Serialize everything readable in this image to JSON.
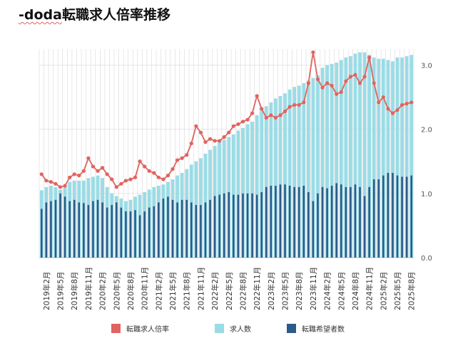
{
  "title": {
    "prefix": "-doda",
    "rest": "転職求人倍率推移"
  },
  "colors": {
    "ratio": "#e0645f",
    "openings": "#9adce6",
    "seekers": "#2b5b8a",
    "grid": "#d8d8d8"
  },
  "chart_data": {
    "type": "bar+line",
    "title": "-doda転職求人倍率推移",
    "x": [
      "2019年1月",
      "2019年2月",
      "2019年3月",
      "2019年4月",
      "2019年5月",
      "2019年6月",
      "2019年7月",
      "2019年8月",
      "2019年9月",
      "2019年10月",
      "2019年11月",
      "2019年12月",
      "2020年1月",
      "2020年2月",
      "2020年3月",
      "2020年4月",
      "2020年5月",
      "2020年6月",
      "2020年7月",
      "2020年8月",
      "2020年9月",
      "2020年10月",
      "2020年11月",
      "2020年12月",
      "2021年1月",
      "2021年2月",
      "2021年3月",
      "2021年4月",
      "2021年5月",
      "2021年6月",
      "2021年7月",
      "2021年8月",
      "2021年9月",
      "2021年10月",
      "2021年11月",
      "2021年12月",
      "2022年1月",
      "2022年2月",
      "2022年3月",
      "2022年4月",
      "2022年5月",
      "2022年6月",
      "2022年7月",
      "2022年8月",
      "2022年9月",
      "2022年10月",
      "2022年11月",
      "2022年12月",
      "2023年1月",
      "2023年2月",
      "2023年3月",
      "2023年4月",
      "2023年5月",
      "2023年6月",
      "2023年7月",
      "2023年8月",
      "2023年9月",
      "2023年10月",
      "2023年11月",
      "2023年12月",
      "2024年1月",
      "2024年2月",
      "2024年3月",
      "2024年4月",
      "2024年5月",
      "2024年6月",
      "2024年7月",
      "2024年8月",
      "2024年9月",
      "2024年10月",
      "2024年11月",
      "2024年12月",
      "2025年1月",
      "2025年2月",
      "2025年3月",
      "2025年4月",
      "2025年5月",
      "2025年6月",
      "2025年7月",
      "2025年8月"
    ],
    "tick_labels": [
      "2019年2月",
      "2019年5月",
      "2019年8月",
      "2019年11月",
      "2020年2月",
      "2020年5月",
      "2020年8月",
      "2020年11月",
      "2021年2月",
      "2021年5月",
      "2021年8月",
      "2021年11月",
      "2022年2月",
      "2022年5月",
      "2022年8月",
      "2022年11月",
      "2023年2月",
      "2023年5月",
      "2023年8月",
      "2023年11月",
      "2024年2月",
      "2024年5月",
      "2024年8月",
      "2024年11月",
      "2025年2月",
      "2025年5月",
      "2025年8月"
    ],
    "tick_start_index": 1,
    "tick_step": 3,
    "y_ticks": [
      "0.0",
      "1.0",
      "2.0",
      "3.0"
    ],
    "ylim": [
      0,
      3.25
    ],
    "series": [
      {
        "name": "求人数",
        "kind": "bar",
        "values": [
          1.05,
          1.1,
          1.12,
          1.1,
          1.06,
          1.1,
          1.18,
          1.2,
          1.2,
          1.2,
          1.24,
          1.26,
          1.28,
          1.24,
          1.1,
          1.0,
          0.96,
          0.92,
          0.88,
          0.9,
          0.95,
          0.98,
          1.02,
          1.06,
          1.1,
          1.12,
          1.14,
          1.18,
          1.22,
          1.28,
          1.32,
          1.38,
          1.45,
          1.5,
          1.55,
          1.62,
          1.68,
          1.74,
          1.8,
          1.84,
          1.88,
          1.92,
          1.98,
          2.02,
          2.08,
          2.12,
          2.22,
          2.3,
          2.36,
          2.42,
          2.48,
          2.52,
          2.56,
          2.62,
          2.66,
          2.68,
          2.72,
          2.76,
          2.8,
          2.84,
          2.96,
          3.0,
          3.02,
          3.04,
          3.08,
          3.12,
          3.14,
          3.18,
          3.2,
          3.2,
          3.16,
          3.12,
          3.1,
          3.1,
          3.08,
          3.06,
          3.12,
          3.12,
          3.14,
          3.16
        ]
      },
      {
        "name": "転職希望者数",
        "kind": "bar",
        "values": [
          0.76,
          0.86,
          0.88,
          0.9,
          1.0,
          0.95,
          0.88,
          0.9,
          0.86,
          0.85,
          0.82,
          0.88,
          0.9,
          0.86,
          0.78,
          0.82,
          0.86,
          0.78,
          0.72,
          0.72,
          0.74,
          0.66,
          0.72,
          0.78,
          0.8,
          0.86,
          0.92,
          0.95,
          0.9,
          0.86,
          0.9,
          0.9,
          0.86,
          0.82,
          0.82,
          0.86,
          0.9,
          0.96,
          0.98,
          1.0,
          1.02,
          0.98,
          0.98,
          1.0,
          1.0,
          1.0,
          0.98,
          1.02,
          1.1,
          1.12,
          1.12,
          1.14,
          1.14,
          1.12,
          1.1,
          1.1,
          1.12,
          1.02,
          0.88,
          1.0,
          1.1,
          1.08,
          1.12,
          1.16,
          1.14,
          1.1,
          1.1,
          1.14,
          1.1,
          0.96,
          1.1,
          1.22,
          1.22,
          1.28,
          1.32,
          1.32,
          1.28,
          1.26,
          1.26,
          1.28
        ]
      },
      {
        "name": "転職求人倍率",
        "kind": "line",
        "values": [
          1.3,
          1.2,
          1.18,
          1.15,
          1.1,
          1.12,
          1.25,
          1.3,
          1.28,
          1.35,
          1.55,
          1.42,
          1.35,
          1.4,
          1.3,
          1.22,
          1.1,
          1.15,
          1.2,
          1.22,
          1.25,
          1.5,
          1.42,
          1.35,
          1.32,
          1.25,
          1.22,
          1.28,
          1.38,
          1.52,
          1.55,
          1.6,
          1.78,
          2.05,
          1.95,
          1.8,
          1.85,
          1.82,
          1.82,
          1.88,
          1.95,
          2.05,
          2.08,
          2.12,
          2.15,
          2.25,
          2.52,
          2.32,
          2.18,
          2.22,
          2.18,
          2.22,
          2.28,
          2.35,
          2.38,
          2.38,
          2.42,
          2.72,
          3.2,
          2.78,
          2.65,
          2.72,
          2.68,
          2.55,
          2.58,
          2.75,
          2.82,
          2.85,
          2.72,
          2.82,
          3.12,
          2.72,
          2.42,
          2.5,
          2.32,
          2.25,
          2.3,
          2.38,
          2.4,
          2.42
        ]
      }
    ],
    "legend": [
      "転職求人倍率",
      "求人数",
      "転職希望者数"
    ]
  }
}
